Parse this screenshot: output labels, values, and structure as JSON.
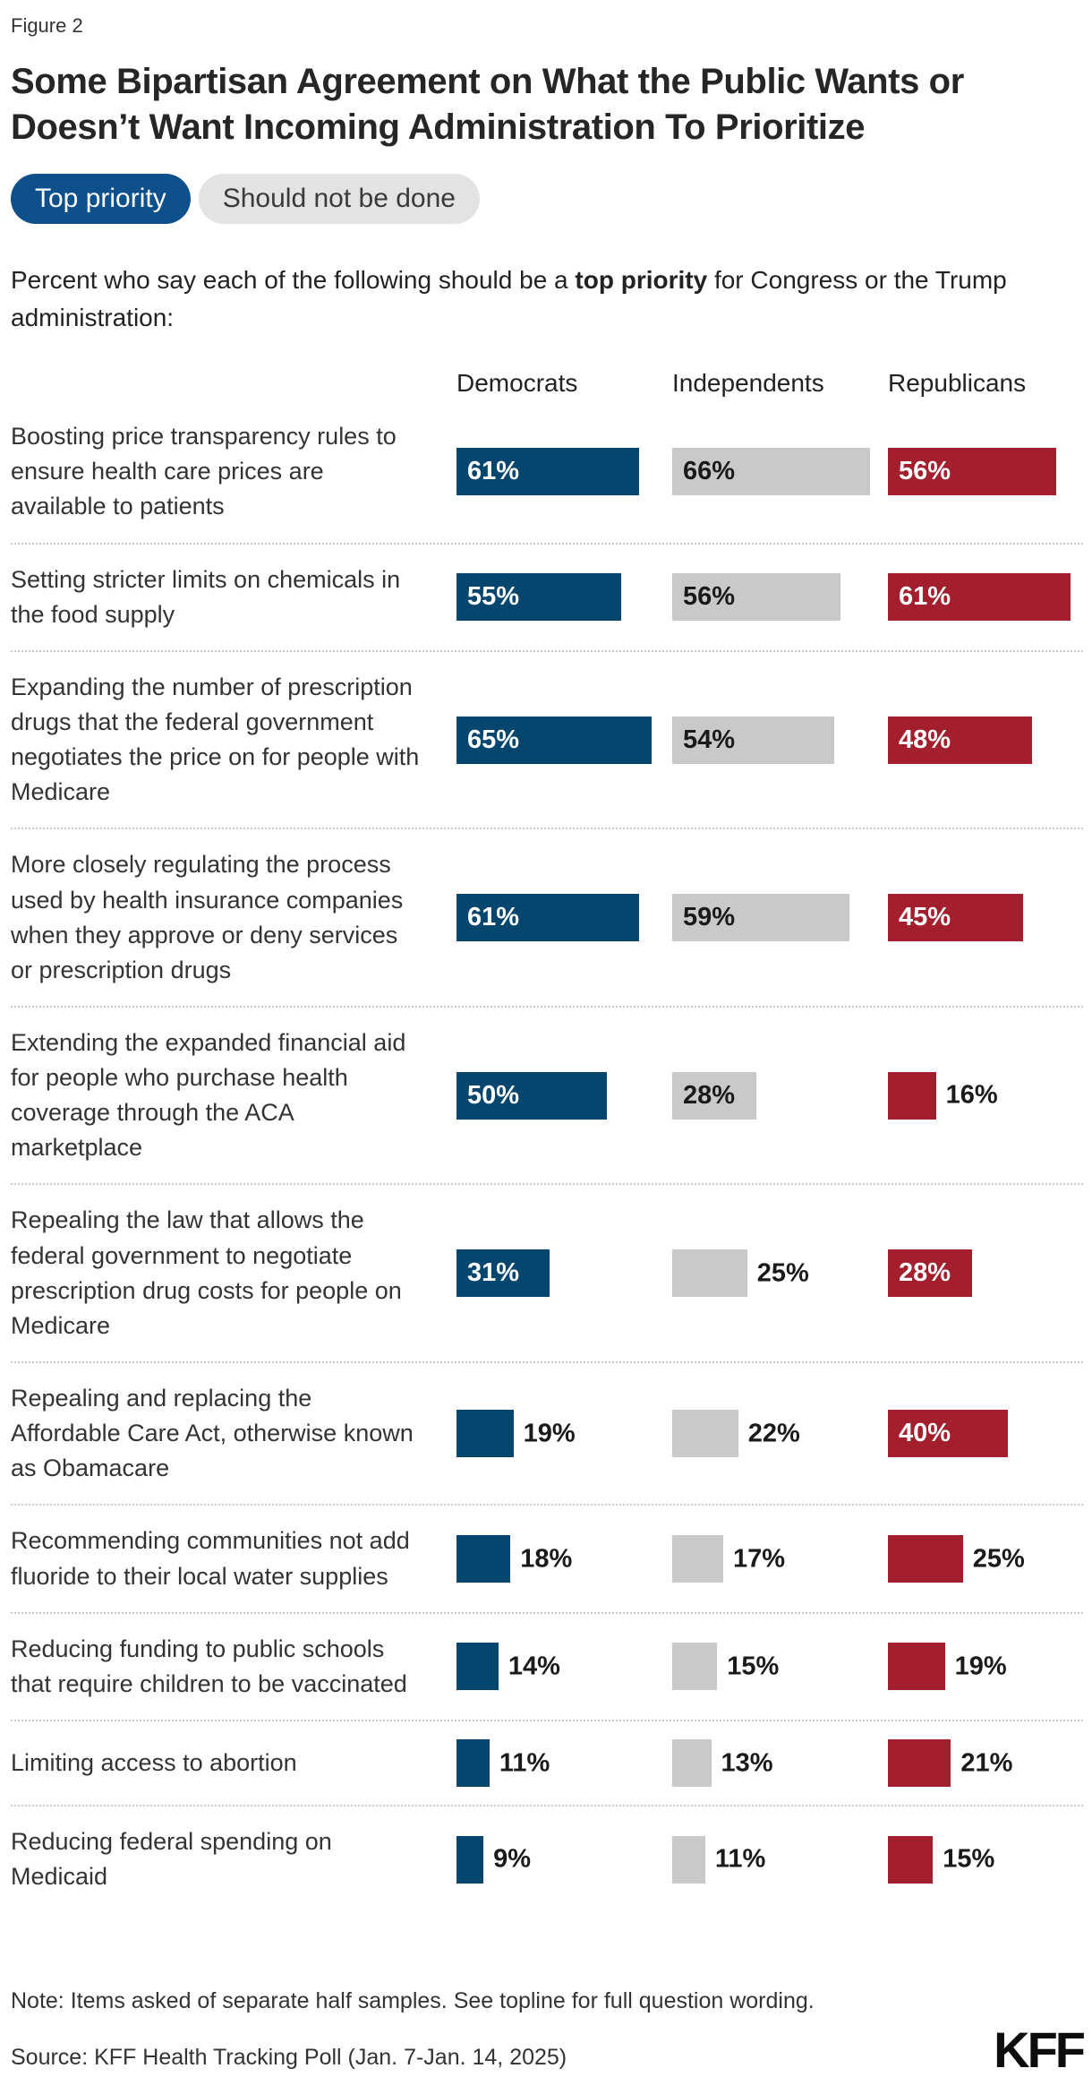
{
  "figure_label": "Figure 2",
  "toggle": {
    "selected": "Top priority",
    "unselected": "Should not be done"
  },
  "colors": {
    "toggle_selected_bg": "#0e508c",
    "toggle_unselected_bg": "#e3e3e3",
    "separator": "#c9c9c9"
  },
  "chart_data": {
    "type": "bar",
    "orientation": "horizontal",
    "title": "Some Bipartisan Agreement on What the Public Wants or Doesn’t Want Incoming Administration To Prioritize",
    "subtitle_parts": {
      "prefix": "Percent who say each of the following should be a ",
      "bold": "top priority",
      "suffix": " for Congress or the Trump administration:"
    },
    "legend_position": "top",
    "value_suffix": "%",
    "xlim": [
      0,
      72
    ],
    "label_inside_min_value": 28,
    "categories": [
      "Boosting price transparency rules to ensure health care prices are available to patients",
      "Setting stricter limits on chemicals in the food supply",
      "Expanding the number of prescription drugs that the federal government negotiates the price on for people with Medicare",
      "More closely regulating the process used by health insurance companies when they approve or deny services or prescription drugs",
      "Extending the expanded financial aid for people who purchase health coverage through the ACA marketplace",
      "Repealing the law that allows the federal government to negotiate prescription drug costs for people on Medicare",
      "Repealing and replacing the Affordable Care Act, otherwise known as Obamacare",
      "Recommending communities not add fluoride to their local water supplies",
      "Reducing funding to public schools that require children to be vaccinated",
      "Limiting access to abortion",
      "Reducing federal spending on Medicaid"
    ],
    "series": [
      {
        "name": "Democrats",
        "color": "#05466e",
        "inside_label_color": "#ffffff",
        "values": [
          61,
          55,
          65,
          61,
          50,
          31,
          19,
          18,
          14,
          11,
          9
        ]
      },
      {
        "name": "Independents",
        "color": "#c9c9c9",
        "inside_label_color": "#1a1a1a",
        "values": [
          66,
          56,
          54,
          59,
          28,
          25,
          22,
          17,
          15,
          13,
          11
        ]
      },
      {
        "name": "Republicans",
        "color": "#a31f2d",
        "inside_label_color": "#ffffff",
        "values": [
          56,
          61,
          48,
          45,
          16,
          28,
          40,
          25,
          19,
          21,
          15
        ]
      }
    ]
  },
  "note": "Note: Items asked of separate half samples. See topline for full question wording.",
  "source": "Source: KFF Health Tracking Poll (Jan. 7-Jan. 14, 2025)",
  "logo_text": "KFF"
}
